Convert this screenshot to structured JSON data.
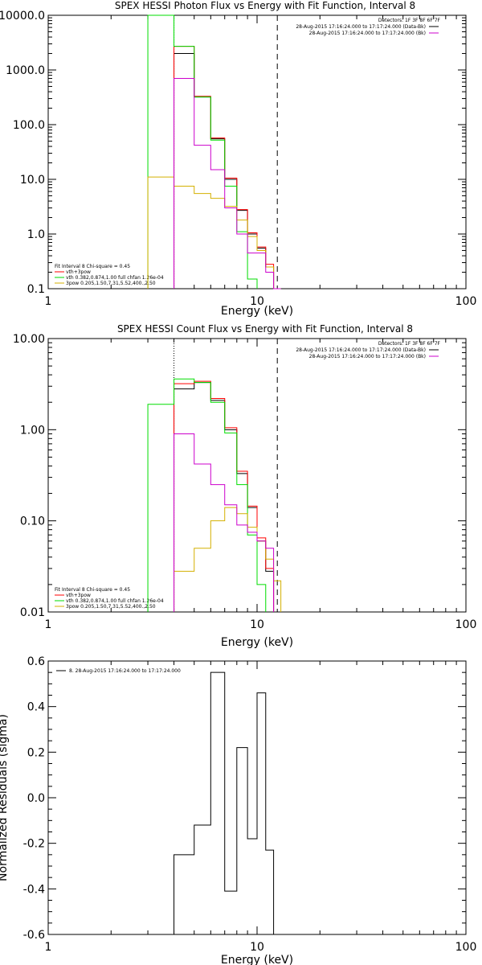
{
  "chart_data": [
    {
      "type": "line",
      "title": "SPEX HESSI Photon Flux vs Energy with Fit Function, Interval 8",
      "xlabel": "Energy (keV)",
      "ylabel": "",
      "xscale": "log",
      "yscale": "log",
      "xlim": [
        1,
        100
      ],
      "ylim": [
        0.1,
        10000
      ],
      "xticks": [
        "1",
        "10",
        "100"
      ],
      "yticks": [
        "0.1",
        "1.0",
        "10.0",
        "100.0",
        "1000.0",
        "10000.0"
      ],
      "legend_header": [
        "Detectors: 1F 3F 8F 6F 7F",
        "28-Aug-2015 17:16:24.000 to 17:17:24.000 (Data-Bk)",
        "28-Aug-2015 17:16:24.000 to 17:17:24.000 (Bk)"
      ],
      "fit_info": [
        "Fit Interval 8   Chi-square = 0.45",
        "vth+3pow",
        "vth 0.382,0.874,1.00  full chfan 1.26e-04",
        "3pow 0.205,1.50,7.31,5.52,400.,2.50"
      ],
      "vlines": [
        {
          "x": 4.0,
          "style": "dotted"
        },
        {
          "x": 12.5,
          "style": "dashed"
        }
      ],
      "energy_edges": [
        3,
        4,
        5,
        6,
        7,
        8,
        9,
        10,
        11,
        12,
        13,
        14
      ],
      "series": [
        {
          "name": "Data-Bk",
          "color": "#000000",
          "values": [
            null,
            2000,
            320,
            55,
            10,
            2.7,
            1.0,
            0.55,
            0.25,
            null,
            null
          ]
        },
        {
          "name": "vth+3pow",
          "color": "#ff0000",
          "values": [
            null,
            2700,
            330,
            57,
            10.5,
            2.8,
            1.05,
            0.58,
            0.28,
            null,
            null
          ]
        },
        {
          "name": "vth",
          "color": "#00dd00",
          "values": [
            10000,
            2700,
            320,
            52,
            7.5,
            1.1,
            0.15,
            null,
            null,
            null,
            null
          ]
        },
        {
          "name": "3pow",
          "color": "#d4b000",
          "values": [
            11,
            7.5,
            5.5,
            4.5,
            3.2,
            1.8,
            0.9,
            0.5,
            0.25,
            0.1,
            null
          ]
        },
        {
          "name": "Bk",
          "color": "#cc00cc",
          "values": [
            null,
            700,
            42,
            15,
            3.0,
            1.0,
            0.45,
            0.45,
            0.2,
            0.1,
            null
          ]
        }
      ]
    },
    {
      "type": "line",
      "title": "SPEX HESSI Count Flux vs Energy with Fit Function, Interval 8",
      "xlabel": "Energy (keV)",
      "ylabel": "",
      "xscale": "log",
      "yscale": "log",
      "xlim": [
        1,
        100
      ],
      "ylim": [
        0.01,
        10
      ],
      "xticks": [
        "1",
        "10",
        "100"
      ],
      "yticks": [
        "0.01",
        "0.10",
        "1.00",
        "10.00"
      ],
      "legend_header": [
        "Detectors: 1F 3F 8F 6F 7F",
        "28-Aug-2015 17:16:24.000 to 17:17:24.000 (Data-Bk)",
        "28-Aug-2015 17:16:24.000 to 17:17:24.000 (Bk)"
      ],
      "fit_info": [
        "Fit Interval 8   Chi-square = 0.45",
        "vth+3pow",
        "vth 0.382,0.874,1.00  full chfan 1.26e-04",
        "3pow 0.205,1.50,7.31,5.52,400.,2.50"
      ],
      "vlines": [
        {
          "x": 4.0,
          "style": "dotted"
        },
        {
          "x": 12.5,
          "style": "dashed"
        }
      ],
      "energy_edges": [
        3,
        4,
        5,
        6,
        7,
        8,
        9,
        10,
        11,
        12,
        13,
        14
      ],
      "series": [
        {
          "name": "Data-Bk",
          "color": "#000000",
          "values": [
            null,
            2.8,
            3.3,
            2.1,
            1.0,
            0.33,
            0.14,
            0.06,
            0.028,
            null,
            null
          ]
        },
        {
          "name": "vth+3pow",
          "color": "#ff0000",
          "values": [
            null,
            3.2,
            3.4,
            2.2,
            1.05,
            0.35,
            0.145,
            0.065,
            0.03,
            null,
            null
          ]
        },
        {
          "name": "vth",
          "color": "#00dd00",
          "values": [
            1.9,
            3.6,
            3.3,
            2.0,
            0.92,
            0.25,
            0.07,
            0.02,
            null,
            null,
            null
          ]
        },
        {
          "name": "3pow",
          "color": "#d4b000",
          "values": [
            null,
            0.028,
            0.05,
            0.1,
            0.14,
            0.12,
            0.085,
            0.06,
            0.038,
            0.022,
            null
          ]
        },
        {
          "name": "Bk",
          "color": "#cc00cc",
          "values": [
            null,
            0.9,
            0.42,
            0.25,
            0.15,
            0.09,
            0.075,
            0.06,
            0.05,
            null,
            null
          ]
        }
      ]
    },
    {
      "type": "line",
      "title": "",
      "xlabel": "Energy (keV)",
      "ylabel": "Normalized Residuals (sigma)",
      "xscale": "log",
      "yscale": "linear",
      "xlim": [
        1,
        100
      ],
      "ylim": [
        -0.6,
        0.6
      ],
      "xticks": [
        "1",
        "10",
        "100"
      ],
      "yticks": [
        "-0.6",
        "-0.4",
        "-0.2",
        "0.0",
        "0.2",
        "0.4",
        "0.6"
      ],
      "legend": [
        "8. 28-Aug-2015 17:16:24.000 to 17:17:24.000"
      ],
      "energy_edges": [
        4,
        5,
        6,
        7,
        8,
        9,
        10,
        11,
        12
      ],
      "series": [
        {
          "name": "",
          "color": "#000000",
          "values": [
            -0.25,
            -0.12,
            0.55,
            -0.41,
            0.22,
            -0.18,
            0.46,
            -0.23
          ]
        }
      ]
    }
  ]
}
